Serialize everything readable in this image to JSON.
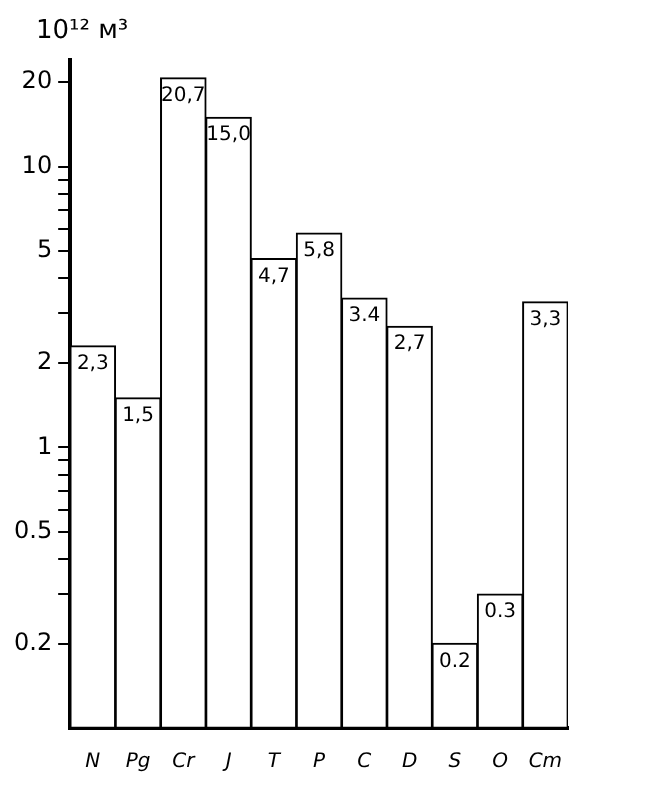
{
  "chart_data": {
    "type": "bar",
    "ylabel": "10¹² м³",
    "categories": [
      "N",
      "Pg",
      "Cr",
      "J",
      "T",
      "P",
      "C",
      "D",
      "S",
      "O",
      "Cm"
    ],
    "values": [
      2.3,
      1.5,
      20.7,
      15.0,
      4.7,
      5.8,
      3.4,
      2.7,
      0.2,
      0.3,
      3.3
    ],
    "value_labels": [
      "2,3",
      "1,5",
      "20,7",
      "15,0",
      "4,7",
      "5,8",
      "3.4",
      "2,7",
      "0.2",
      "0.3",
      "3,3"
    ],
    "color": "#ffffff",
    "log": true,
    "ylim": [
      0.1,
      24
    ],
    "yticks": [
      0.2,
      {
        "value": 0.3,
        "label": null
      },
      {
        "value": 0.4,
        "label": null
      },
      0.5,
      {
        "value": 0.6,
        "label": null
      },
      {
        "value": 0.7,
        "label": null
      },
      {
        "value": 0.8,
        "label": null
      },
      {
        "value": 0.9,
        "label": null
      },
      1,
      2,
      {
        "value": 3,
        "label": null
      },
      {
        "value": 4,
        "label": null
      },
      5,
      {
        "value": 6,
        "label": null
      },
      {
        "value": 7,
        "label": null
      },
      {
        "value": 8,
        "label": null
      },
      {
        "value": 9,
        "label": null
      },
      10,
      20
    ],
    "grid": false,
    "legend": false
  }
}
